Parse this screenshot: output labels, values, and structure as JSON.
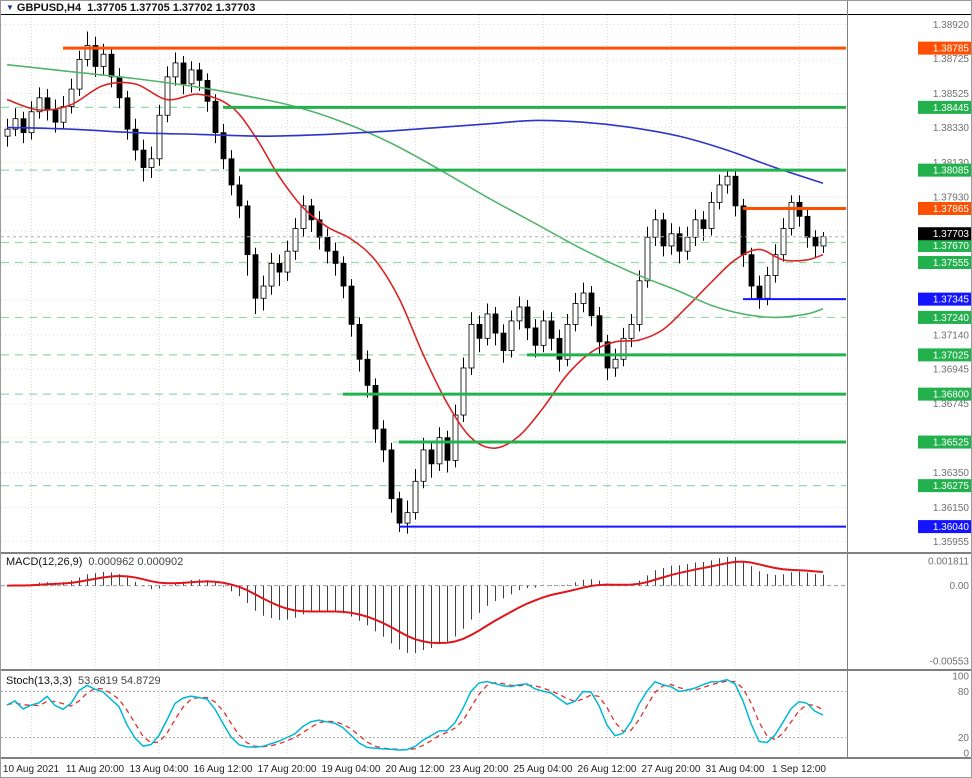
{
  "header": {
    "marker": "▼",
    "symbol": "GBPUSD,H4",
    "ohlc": "1.37705 1.37705 1.37702 1.37703"
  },
  "indicators": {
    "macd": {
      "label": "MACD(12,26,9)",
      "values": "0.000962 0.000902"
    },
    "stoch": {
      "label": "Stoch(13,3,3)",
      "values": "53.6819 54.8729"
    }
  },
  "colors": {
    "bull": "#ffffff",
    "bear": "#000000",
    "outline": "#000000",
    "grid": "#d9d9d9",
    "green_level": "#22b14c",
    "green_dashed": "#93d9a9",
    "orange_level": "#ff4f00",
    "blue_level": "#1414ff",
    "macd_hist": "#404040",
    "macd_signal": "#e0151b",
    "stoch_main": "#00b8d4",
    "stoch_signal": "#e03030",
    "axis_text": "#707070",
    "current_box": "#000000",
    "label_text_on_box": "#ffffff"
  },
  "chart_data": {
    "type": "candlestick",
    "symbol": "GBPUSD",
    "timeframe": "H4",
    "title": "GBPUSD,H4 1.37705 1.37705 1.37702 1.37703",
    "current_price": 1.37703,
    "price_range": [
      1.359,
      1.38975
    ],
    "price_grid": [
      1.3892,
      1.38725,
      1.38525,
      1.3833,
      1.3813,
      1.3793,
      1.37735,
      1.3754,
      1.3734,
      1.3714,
      1.36945,
      1.36745,
      1.3655,
      1.3635,
      1.3615,
      1.35955
    ],
    "price_ticks_visible": [
      "1.38920",
      "1.38725",
      "1.38525",
      "1.38330",
      "1.38130",
      "1.37930",
      "1.37140",
      "1.36945",
      "1.36745",
      "1.36350",
      "1.36150",
      "1.35955"
    ],
    "candles": [
      [
        1.3828,
        1.3838,
        1.3822,
        1.3832
      ],
      [
        1.3832,
        1.3844,
        1.3828,
        1.3838
      ],
      [
        1.3838,
        1.3842,
        1.3824,
        1.383
      ],
      [
        1.383,
        1.3848,
        1.3826,
        1.3842
      ],
      [
        1.3842,
        1.3856,
        1.3838,
        1.385
      ],
      [
        1.385,
        1.3855,
        1.3837,
        1.3843
      ],
      [
        1.3843,
        1.3849,
        1.383,
        1.3836
      ],
      [
        1.3836,
        1.3851,
        1.3832,
        1.3845
      ],
      [
        1.3845,
        1.3861,
        1.3841,
        1.3855
      ],
      [
        1.3855,
        1.3877,
        1.3851,
        1.3872
      ],
      [
        1.3872,
        1.3888,
        1.3868,
        1.388
      ],
      [
        1.388,
        1.3885,
        1.3862,
        1.3868
      ],
      [
        1.3868,
        1.3881,
        1.3863,
        1.3875
      ],
      [
        1.3875,
        1.3879,
        1.3856,
        1.3862
      ],
      [
        1.3862,
        1.3867,
        1.3844,
        1.385
      ],
      [
        1.385,
        1.3854,
        1.3826,
        1.3832
      ],
      [
        1.3832,
        1.3838,
        1.3814,
        1.382
      ],
      [
        1.382,
        1.3826,
        1.3802,
        1.381
      ],
      [
        1.381,
        1.3822,
        1.3804,
        1.3815
      ],
      [
        1.3815,
        1.3846,
        1.3811,
        1.384
      ],
      [
        1.384,
        1.3868,
        1.3836,
        1.3862
      ],
      [
        1.3862,
        1.3876,
        1.3857,
        1.387
      ],
      [
        1.387,
        1.3874,
        1.3852,
        1.3858
      ],
      [
        1.3858,
        1.3871,
        1.3853,
        1.3866
      ],
      [
        1.3866,
        1.387,
        1.3854,
        1.386
      ],
      [
        1.386,
        1.3864,
        1.3842,
        1.3848
      ],
      [
        1.3848,
        1.3852,
        1.3824,
        1.383
      ],
      [
        1.383,
        1.3835,
        1.3809,
        1.3815
      ],
      [
        1.3815,
        1.382,
        1.3794,
        1.38
      ],
      [
        1.38,
        1.3805,
        1.3781,
        1.3788
      ],
      [
        1.3788,
        1.3791,
        1.3748,
        1.376
      ],
      [
        1.376,
        1.3764,
        1.3726,
        1.3735
      ],
      [
        1.3735,
        1.3748,
        1.3728,
        1.3742
      ],
      [
        1.3742,
        1.3761,
        1.3737,
        1.3755
      ],
      [
        1.3755,
        1.376,
        1.3742,
        1.375
      ],
      [
        1.375,
        1.3768,
        1.3745,
        1.3762
      ],
      [
        1.3762,
        1.3781,
        1.3757,
        1.3775
      ],
      [
        1.3775,
        1.3794,
        1.377,
        1.3788
      ],
      [
        1.3788,
        1.3792,
        1.3773,
        1.378
      ],
      [
        1.378,
        1.3785,
        1.3763,
        1.377
      ],
      [
        1.377,
        1.3775,
        1.3755,
        1.3762
      ],
      [
        1.3762,
        1.3767,
        1.3748,
        1.3755
      ],
      [
        1.3755,
        1.3759,
        1.3735,
        1.3742
      ],
      [
        1.3742,
        1.3746,
        1.3713,
        1.372
      ],
      [
        1.372,
        1.3724,
        1.3693,
        1.37
      ],
      [
        1.37,
        1.3705,
        1.3678,
        1.3685
      ],
      [
        1.3685,
        1.3689,
        1.3652,
        1.366
      ],
      [
        1.366,
        1.3665,
        1.3641,
        1.3648
      ],
      [
        1.3648,
        1.3652,
        1.3612,
        1.362
      ],
      [
        1.362,
        1.3624,
        1.3601,
        1.3606
      ],
      [
        1.3606,
        1.3619,
        1.36,
        1.3612
      ],
      [
        1.3612,
        1.3637,
        1.3608,
        1.363
      ],
      [
        1.363,
        1.3655,
        1.3626,
        1.3648
      ],
      [
        1.3648,
        1.3653,
        1.3632,
        1.364
      ],
      [
        1.364,
        1.3661,
        1.3636,
        1.3655
      ],
      [
        1.3655,
        1.3659,
        1.3635,
        1.3642
      ],
      [
        1.3642,
        1.3674,
        1.3638,
        1.3668
      ],
      [
        1.3668,
        1.3701,
        1.3664,
        1.3695
      ],
      [
        1.3695,
        1.3727,
        1.3691,
        1.372
      ],
      [
        1.372,
        1.3725,
        1.3704,
        1.3712
      ],
      [
        1.3712,
        1.3732,
        1.3708,
        1.3726
      ],
      [
        1.3726,
        1.373,
        1.3708,
        1.3715
      ],
      [
        1.3715,
        1.372,
        1.3698,
        1.3705
      ],
      [
        1.3705,
        1.3728,
        1.3701,
        1.3722
      ],
      [
        1.3722,
        1.3736,
        1.3717,
        1.373
      ],
      [
        1.373,
        1.3734,
        1.3711,
        1.3718
      ],
      [
        1.3718,
        1.3723,
        1.3701,
        1.3708
      ],
      [
        1.3708,
        1.3728,
        1.3704,
        1.3722
      ],
      [
        1.3722,
        1.3727,
        1.3705,
        1.3712
      ],
      [
        1.3712,
        1.3717,
        1.3693,
        1.37
      ],
      [
        1.37,
        1.3726,
        1.3696,
        1.372
      ],
      [
        1.372,
        1.3738,
        1.3716,
        1.3732
      ],
      [
        1.3732,
        1.3744,
        1.3727,
        1.3738
      ],
      [
        1.3738,
        1.3742,
        1.3719,
        1.3725
      ],
      [
        1.3725,
        1.373,
        1.3703,
        1.371
      ],
      [
        1.371,
        1.3714,
        1.3688,
        1.3695
      ],
      [
        1.3695,
        1.3706,
        1.369,
        1.37
      ],
      [
        1.37,
        1.3718,
        1.3696,
        1.3712
      ],
      [
        1.3712,
        1.3726,
        1.3707,
        1.372
      ],
      [
        1.372,
        1.3751,
        1.3716,
        1.3745
      ],
      [
        1.3745,
        1.3776,
        1.3741,
        1.377
      ],
      [
        1.377,
        1.3786,
        1.3765,
        1.378
      ],
      [
        1.378,
        1.3784,
        1.3759,
        1.3765
      ],
      [
        1.3765,
        1.3778,
        1.376,
        1.3772
      ],
      [
        1.3772,
        1.3776,
        1.3755,
        1.3762
      ],
      [
        1.3762,
        1.3776,
        1.3757,
        1.377
      ],
      [
        1.377,
        1.3786,
        1.3765,
        1.378
      ],
      [
        1.378,
        1.3785,
        1.3768,
        1.3775
      ],
      [
        1.3775,
        1.3796,
        1.3771,
        1.379
      ],
      [
        1.379,
        1.3806,
        1.3786,
        1.38
      ],
      [
        1.38,
        1.3808,
        1.3795,
        1.3805
      ],
      [
        1.3805,
        1.3809,
        1.3782,
        1.3788
      ],
      [
        1.3788,
        1.3792,
        1.3753,
        1.376
      ],
      [
        1.376,
        1.3764,
        1.3735,
        1.3742
      ],
      [
        1.3742,
        1.3748,
        1.3729,
        1.3735
      ],
      [
        1.3735,
        1.3753,
        1.3731,
        1.3748
      ],
      [
        1.3748,
        1.3766,
        1.3744,
        1.376
      ],
      [
        1.376,
        1.3781,
        1.3756,
        1.3775
      ],
      [
        1.3775,
        1.3794,
        1.3771,
        1.379
      ],
      [
        1.379,
        1.3794,
        1.3776,
        1.3782
      ],
      [
        1.3782,
        1.3786,
        1.3764,
        1.377
      ],
      [
        1.377,
        1.3774,
        1.3758,
        1.3765
      ],
      [
        1.3765,
        1.3773,
        1.3761,
        1.37703
      ]
    ],
    "time_labels": [
      {
        "bar": 3,
        "text": "10 Aug 2021"
      },
      {
        "bar": 11,
        "text": "11 Aug 20:00"
      },
      {
        "bar": 19,
        "text": "13 Aug 04:00"
      },
      {
        "bar": 27,
        "text": "16 Aug 12:00"
      },
      {
        "bar": 35,
        "text": "17 Aug 20:00"
      },
      {
        "bar": 43,
        "text": "19 Aug 04:00"
      },
      {
        "bar": 51,
        "text": "20 Aug 12:00"
      },
      {
        "bar": 59,
        "text": "23 Aug 20:00"
      },
      {
        "bar": 67,
        "text": "25 Aug 04:00"
      },
      {
        "bar": 75,
        "text": "26 Aug 12:00"
      },
      {
        "bar": 83,
        "text": "27 Aug 20:00"
      },
      {
        "bar": 91,
        "text": "31 Aug 04:00"
      },
      {
        "bar": 99,
        "text": "1 Sep 12:00"
      }
    ],
    "levels": [
      {
        "price": 1.38785,
        "color": "orange",
        "style": "solid",
        "width": 3,
        "from_bar": 7
      },
      {
        "price": 1.38445,
        "color": "green",
        "style": "solid",
        "width": 3,
        "from_bar": 27,
        "dashed_extend": true
      },
      {
        "price": 1.38085,
        "color": "green",
        "style": "solid",
        "width": 3,
        "from_bar": 29,
        "dashed_extend": true
      },
      {
        "price": 1.37865,
        "color": "orange",
        "style": "solid",
        "width": 3,
        "from_bar": 92
      },
      {
        "price": 1.3767,
        "color": "green",
        "style": "dashed"
      },
      {
        "price": 1.37555,
        "color": "green",
        "style": "dashed"
      },
      {
        "price": 1.37345,
        "color": "blue",
        "style": "solid",
        "width": 2,
        "from_bar": 92
      },
      {
        "price": 1.3724,
        "color": "green",
        "style": "dashed"
      },
      {
        "price": 1.37025,
        "color": "green",
        "style": "solid",
        "width": 3,
        "from_bar": 65,
        "dashed_extend": true
      },
      {
        "price": 1.368,
        "color": "green",
        "style": "solid",
        "width": 3,
        "from_bar": 42,
        "dashed_extend": true
      },
      {
        "price": 1.36525,
        "color": "green",
        "style": "solid",
        "width": 3,
        "from_bar": 49,
        "dashed_extend": true
      },
      {
        "price": 1.36275,
        "color": "green",
        "style": "dashed"
      },
      {
        "price": 1.3604,
        "color": "blue",
        "style": "solid",
        "width": 2,
        "from_bar": 49
      }
    ],
    "moving_averages": [
      {
        "name": "ma-fast",
        "color": "#d92525",
        "points": [
          [
            0,
            1.3849
          ],
          [
            4,
            1.3843
          ],
          [
            8,
            1.3846
          ],
          [
            12,
            1.3857
          ],
          [
            16,
            1.3858
          ],
          [
            20,
            1.3849
          ],
          [
            24,
            1.3852
          ],
          [
            28,
            1.3845
          ],
          [
            31,
            1.3828
          ],
          [
            34,
            1.3805
          ],
          [
            37,
            1.3787
          ],
          [
            40,
            1.3776
          ],
          [
            43,
            1.3769
          ],
          [
            46,
            1.3757
          ],
          [
            49,
            1.3735
          ],
          [
            52,
            1.3703
          ],
          [
            55,
            1.3675
          ],
          [
            58,
            1.3655
          ],
          [
            61,
            1.3649
          ],
          [
            64,
            1.3656
          ],
          [
            67,
            1.3672
          ],
          [
            70,
            1.3691
          ],
          [
            73,
            1.3704
          ],
          [
            76,
            1.371
          ],
          [
            79,
            1.3711
          ],
          [
            82,
            1.3717
          ],
          [
            85,
            1.373
          ],
          [
            88,
            1.3744
          ],
          [
            91,
            1.3757
          ],
          [
            94,
            1.3763
          ],
          [
            97,
            1.3757
          ],
          [
            100,
            1.3757
          ],
          [
            102,
            1.376
          ]
        ]
      },
      {
        "name": "ma-medium",
        "color": "#54b46c",
        "points": [
          [
            0,
            1.3869
          ],
          [
            8,
            1.3865
          ],
          [
            16,
            1.3861
          ],
          [
            24,
            1.3856
          ],
          [
            30,
            1.3851
          ],
          [
            36,
            1.3845
          ],
          [
            42,
            1.3836
          ],
          [
            48,
            1.3824
          ],
          [
            54,
            1.3809
          ],
          [
            60,
            1.3793
          ],
          [
            66,
            1.3778
          ],
          [
            72,
            1.3763
          ],
          [
            78,
            1.375
          ],
          [
            84,
            1.3739
          ],
          [
            88,
            1.3731
          ],
          [
            92,
            1.3726
          ],
          [
            96,
            1.3724
          ],
          [
            100,
            1.3726
          ],
          [
            102,
            1.3729
          ]
        ]
      },
      {
        "name": "ma-slow",
        "color": "#2b35c8",
        "points": [
          [
            0,
            1.3833
          ],
          [
            8,
            1.3832
          ],
          [
            16,
            1.383
          ],
          [
            24,
            1.3829
          ],
          [
            32,
            1.3828
          ],
          [
            40,
            1.3829
          ],
          [
            48,
            1.3831
          ],
          [
            54,
            1.3833
          ],
          [
            60,
            1.3835
          ],
          [
            66,
            1.3837
          ],
          [
            72,
            1.3836
          ],
          [
            78,
            1.3833
          ],
          [
            84,
            1.3828
          ],
          [
            90,
            1.382
          ],
          [
            96,
            1.381
          ],
          [
            102,
            1.3801
          ]
        ]
      }
    ],
    "macd": {
      "params": [
        12,
        26,
        9
      ],
      "value_range": [
        -0.0059,
        0.0021
      ],
      "axis_labels": [
        {
          "value": 0.001811,
          "text": "0.001811"
        },
        {
          "value": 0,
          "text": "0.00"
        },
        {
          "value": -0.00553,
          "text": "-0.00553"
        }
      ]
    },
    "stoch": {
      "params": [
        13,
        3,
        3
      ],
      "levels": [
        20,
        80
      ],
      "axis_labels": [
        {
          "value": 100,
          "text": "100"
        },
        {
          "value": 80,
          "text": "80"
        },
        {
          "value": 20,
          "text": "20"
        },
        {
          "value": 0,
          "text": "0"
        }
      ]
    }
  }
}
